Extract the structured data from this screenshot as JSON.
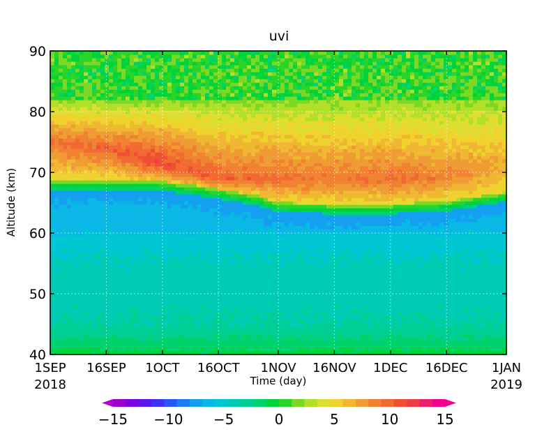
{
  "chart_data": {
    "type": "heatmap",
    "title": "uvi",
    "xlabel": "Time (day)",
    "ylabel": "Altitude (km)",
    "x_ticks": [
      {
        "label": "1SEP",
        "sub": "2018",
        "day": 0
      },
      {
        "label": "16SEP",
        "sub": "",
        "day": 15
      },
      {
        "label": "1OCT",
        "sub": "",
        "day": 30
      },
      {
        "label": "16OCT",
        "sub": "",
        "day": 45
      },
      {
        "label": "1NOV",
        "sub": "",
        "day": 61
      },
      {
        "label": "16NOV",
        "sub": "",
        "day": 76
      },
      {
        "label": "1DEC",
        "sub": "",
        "day": 91
      },
      {
        "label": "16DEC",
        "sub": "",
        "day": 106
      },
      {
        "label": "1JAN",
        "sub": "2019",
        "day": 122
      }
    ],
    "y_ticks": [
      40,
      50,
      60,
      70,
      80,
      90
    ],
    "xlim": [
      0,
      122
    ],
    "ylim": [
      40,
      90
    ],
    "grid": true,
    "colorbar": {
      "ticks": [
        -15,
        -10,
        -5,
        0,
        5,
        10,
        15
      ],
      "min": -15,
      "max": 15,
      "extend": "both",
      "levels": [
        "#9b00cf",
        "#7a00e0",
        "#5a14ee",
        "#3c32f5",
        "#2a55f8",
        "#1e7cf5",
        "#14a0f0",
        "#0ab8e6",
        "#00c8d2",
        "#00ccb4",
        "#00cf94",
        "#00d26e",
        "#00d43c",
        "#2ad428",
        "#7cd824",
        "#b2e028",
        "#dede32",
        "#f0d22e",
        "#f0b832",
        "#f09c34",
        "#f08232",
        "#f06a32",
        "#f05032",
        "#f03c46",
        "#f01e6e",
        "#f0008c"
      ],
      "below_color": "#b400d2",
      "above_color": "#f0008c"
    },
    "description_rows": [
      {
        "alt": 40,
        "value": -0.8
      },
      {
        "alt": 41,
        "value": -1.2
      },
      {
        "alt": 43,
        "value": -2.4
      },
      {
        "alt": 45,
        "value": -3.4
      },
      {
        "alt": 50,
        "value": -4.0
      },
      {
        "alt": 55,
        "value": -4.4
      },
      {
        "alt": 58,
        "value": -5.0
      },
      {
        "alt": 62,
        "value": -6.5
      }
    ],
    "boundary_altitude": [
      {
        "day": 0,
        "alt": 68.0
      },
      {
        "day": 15,
        "alt": 68.0
      },
      {
        "day": 27,
        "alt": 68.0
      },
      {
        "day": 40,
        "alt": 67.0
      },
      {
        "day": 55,
        "alt": 65.5
      },
      {
        "day": 61,
        "alt": 64.3
      },
      {
        "day": 76,
        "alt": 64.0
      },
      {
        "day": 91,
        "alt": 64.0
      },
      {
        "day": 106,
        "alt": 64.5
      },
      {
        "day": 122,
        "alt": 66.0
      }
    ],
    "upper_maximum": [
      {
        "day": 0,
        "alt": 75,
        "value": 9.5
      },
      {
        "day": 15,
        "alt": 74,
        "value": 10.0
      },
      {
        "day": 27,
        "alt": 72,
        "value": 11.5
      },
      {
        "day": 45,
        "alt": 69,
        "value": 10.0
      },
      {
        "day": 76,
        "alt": 69,
        "value": 9.0
      },
      {
        "day": 91,
        "alt": 69,
        "value": 9.5
      },
      {
        "day": 106,
        "alt": 69,
        "value": 8.5
      },
      {
        "day": 122,
        "alt": 71,
        "value": 7.0
      }
    ],
    "upper_band": {
      "alt_top": 90,
      "alt_green": 82,
      "value_top": 0.5
    }
  }
}
